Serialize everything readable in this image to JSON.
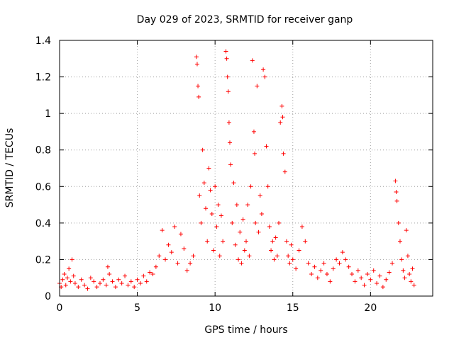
{
  "chart_data": {
    "type": "scatter",
    "title": "Day 029 of 2023, SRMTID for receiver ganp",
    "xlabel": "GPS time / hours",
    "ylabel": "SRMTID / TECUs",
    "xlim": [
      0,
      24
    ],
    "ylim": [
      0,
      1.4
    ],
    "xticks": [
      0,
      5,
      10,
      15,
      20
    ],
    "xtick_labels": [
      "0",
      "5",
      "10",
      "15",
      "20"
    ],
    "yticks": [
      0,
      0.2,
      0.4,
      0.6,
      0.8,
      1.0,
      1.2,
      1.4
    ],
    "ytick_labels": [
      "0",
      "0.2",
      "0.4",
      "0.6",
      "0.8",
      "1",
      "1.2",
      "1.4"
    ],
    "grid": true,
    "marker": "+",
    "color": "#ff0000",
    "series": [
      {
        "name": "SRMTID",
        "points": [
          [
            0.0,
            0.07
          ],
          [
            0.1,
            0.05
          ],
          [
            0.2,
            0.09
          ],
          [
            0.3,
            0.12
          ],
          [
            0.4,
            0.06
          ],
          [
            0.5,
            0.1
          ],
          [
            0.6,
            0.15
          ],
          [
            0.7,
            0.08
          ],
          [
            0.8,
            0.2
          ],
          [
            0.9,
            0.11
          ],
          [
            1.0,
            0.07
          ],
          [
            1.2,
            0.05
          ],
          [
            1.4,
            0.09
          ],
          [
            1.6,
            0.06
          ],
          [
            1.8,
            0.04
          ],
          [
            2.0,
            0.1
          ],
          [
            2.2,
            0.08
          ],
          [
            2.4,
            0.05
          ],
          [
            2.6,
            0.07
          ],
          [
            2.8,
            0.09
          ],
          [
            3.0,
            0.06
          ],
          [
            3.1,
            0.16
          ],
          [
            3.2,
            0.12
          ],
          [
            3.4,
            0.08
          ],
          [
            3.6,
            0.05
          ],
          [
            3.8,
            0.09
          ],
          [
            4.0,
            0.07
          ],
          [
            4.2,
            0.11
          ],
          [
            4.4,
            0.06
          ],
          [
            4.6,
            0.08
          ],
          [
            4.8,
            0.05
          ],
          [
            5.0,
            0.09
          ],
          [
            5.2,
            0.07
          ],
          [
            5.4,
            0.11
          ],
          [
            5.6,
            0.08
          ],
          [
            5.8,
            0.13
          ],
          [
            6.0,
            0.12
          ],
          [
            6.2,
            0.16
          ],
          [
            6.4,
            0.22
          ],
          [
            6.6,
            0.36
          ],
          [
            6.8,
            0.2
          ],
          [
            7.0,
            0.28
          ],
          [
            7.2,
            0.24
          ],
          [
            7.4,
            0.38
          ],
          [
            7.6,
            0.18
          ],
          [
            7.8,
            0.34
          ],
          [
            8.0,
            0.26
          ],
          [
            8.2,
            0.14
          ],
          [
            8.4,
            0.18
          ],
          [
            8.6,
            0.22
          ],
          [
            8.8,
            1.31
          ],
          [
            8.85,
            1.27
          ],
          [
            8.9,
            1.15
          ],
          [
            8.95,
            1.09
          ],
          [
            9.0,
            0.55
          ],
          [
            9.1,
            0.4
          ],
          [
            9.2,
            0.8
          ],
          [
            9.3,
            0.62
          ],
          [
            9.4,
            0.48
          ],
          [
            9.5,
            0.3
          ],
          [
            9.6,
            0.7
          ],
          [
            9.7,
            0.58
          ],
          [
            9.8,
            0.45
          ],
          [
            9.9,
            0.25
          ],
          [
            10.0,
            0.6
          ],
          [
            10.1,
            0.38
          ],
          [
            10.2,
            0.5
          ],
          [
            10.3,
            0.22
          ],
          [
            10.4,
            0.44
          ],
          [
            10.5,
            0.3
          ],
          [
            10.7,
            1.34
          ],
          [
            10.75,
            1.3
          ],
          [
            10.8,
            1.2
          ],
          [
            10.85,
            1.12
          ],
          [
            10.9,
            0.95
          ],
          [
            10.95,
            0.84
          ],
          [
            11.0,
            0.72
          ],
          [
            11.1,
            0.4
          ],
          [
            11.2,
            0.62
          ],
          [
            11.3,
            0.28
          ],
          [
            11.4,
            0.5
          ],
          [
            11.5,
            0.2
          ],
          [
            11.6,
            0.35
          ],
          [
            11.7,
            0.18
          ],
          [
            11.8,
            0.42
          ],
          [
            11.9,
            0.25
          ],
          [
            12.0,
            0.3
          ],
          [
            12.1,
            0.5
          ],
          [
            12.2,
            0.22
          ],
          [
            12.3,
            0.6
          ],
          [
            12.4,
            1.29
          ],
          [
            12.5,
            0.9
          ],
          [
            12.55,
            0.78
          ],
          [
            12.6,
            0.4
          ],
          [
            12.7,
            1.15
          ],
          [
            12.8,
            0.35
          ],
          [
            12.9,
            0.55
          ],
          [
            13.0,
            0.45
          ],
          [
            13.1,
            1.24
          ],
          [
            13.2,
            1.2
          ],
          [
            13.3,
            0.82
          ],
          [
            13.4,
            0.6
          ],
          [
            13.5,
            0.38
          ],
          [
            13.6,
            0.25
          ],
          [
            13.7,
            0.3
          ],
          [
            13.8,
            0.2
          ],
          [
            13.9,
            0.32
          ],
          [
            14.0,
            0.22
          ],
          [
            14.1,
            0.4
          ],
          [
            14.2,
            0.95
          ],
          [
            14.3,
            1.04
          ],
          [
            14.35,
            0.98
          ],
          [
            14.4,
            0.78
          ],
          [
            14.5,
            0.68
          ],
          [
            14.6,
            0.3
          ],
          [
            14.7,
            0.22
          ],
          [
            14.8,
            0.18
          ],
          [
            14.9,
            0.28
          ],
          [
            15.0,
            0.2
          ],
          [
            15.2,
            0.15
          ],
          [
            15.4,
            0.25
          ],
          [
            15.6,
            0.38
          ],
          [
            15.8,
            0.3
          ],
          [
            16.0,
            0.18
          ],
          [
            16.2,
            0.12
          ],
          [
            16.4,
            0.16
          ],
          [
            16.6,
            0.1
          ],
          [
            16.8,
            0.14
          ],
          [
            17.0,
            0.18
          ],
          [
            17.2,
            0.12
          ],
          [
            17.4,
            0.08
          ],
          [
            17.6,
            0.15
          ],
          [
            17.8,
            0.2
          ],
          [
            18.0,
            0.18
          ],
          [
            18.2,
            0.24
          ],
          [
            18.4,
            0.2
          ],
          [
            18.6,
            0.16
          ],
          [
            18.8,
            0.12
          ],
          [
            19.0,
            0.08
          ],
          [
            19.2,
            0.14
          ],
          [
            19.4,
            0.1
          ],
          [
            19.6,
            0.06
          ],
          [
            19.8,
            0.12
          ],
          [
            20.0,
            0.09
          ],
          [
            20.2,
            0.14
          ],
          [
            20.4,
            0.07
          ],
          [
            20.6,
            0.11
          ],
          [
            20.8,
            0.05
          ],
          [
            21.0,
            0.09
          ],
          [
            21.2,
            0.13
          ],
          [
            21.4,
            0.18
          ],
          [
            21.6,
            0.63
          ],
          [
            21.65,
            0.57
          ],
          [
            21.7,
            0.52
          ],
          [
            21.8,
            0.4
          ],
          [
            21.9,
            0.3
          ],
          [
            22.0,
            0.2
          ],
          [
            22.1,
            0.14
          ],
          [
            22.2,
            0.1
          ],
          [
            22.3,
            0.36
          ],
          [
            22.4,
            0.22
          ],
          [
            22.5,
            0.12
          ],
          [
            22.6,
            0.08
          ],
          [
            22.7,
            0.15
          ],
          [
            22.8,
            0.06
          ]
        ]
      }
    ]
  }
}
